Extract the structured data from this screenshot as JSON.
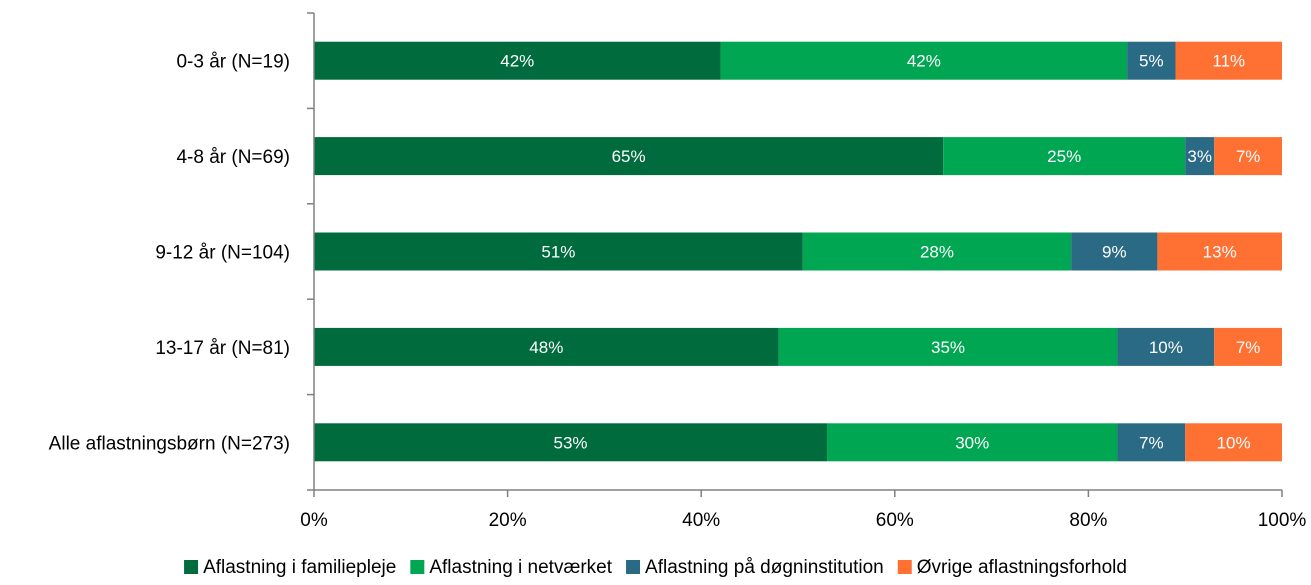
{
  "chart_data": {
    "type": "bar",
    "orientation": "horizontal",
    "stacked": true,
    "percent": true,
    "categories": [
      "0-3 år (N=19)",
      "4-8 år (N=69)",
      "9-12 år (N=104)",
      "13-17 år (N=81)",
      "Alle aflastningsbørn (N=273)"
    ],
    "series": [
      {
        "name": "Aflastning i familiepleje",
        "color": "#006b3c",
        "values": [
          42,
          65,
          51,
          48,
          53
        ],
        "labels": [
          "42%",
          "65%",
          "51%",
          "48%",
          "53%"
        ]
      },
      {
        "name": "Aflastning i netværket",
        "color": "#00a651",
        "values": [
          42,
          25,
          28,
          35,
          30
        ],
        "labels": [
          "42%",
          "25%",
          "28%",
          "35%",
          "30%"
        ]
      },
      {
        "name": "Aflastning på døgninstitution",
        "color": "#2b6a84",
        "values": [
          5,
          3,
          9,
          10,
          7
        ],
        "labels": [
          "5%",
          "3%",
          "9%",
          "10%",
          "7%"
        ]
      },
      {
        "name": "Øvrige aflastningsforhold",
        "color": "#ff7033",
        "values": [
          11,
          7,
          13,
          7,
          10
        ],
        "labels": [
          "11%",
          "7%",
          "13%",
          "7%",
          "10%"
        ]
      }
    ],
    "xlim": [
      0,
      100
    ],
    "xticks": [
      "0%",
      "20%",
      "40%",
      "60%",
      "80%",
      "100%"
    ],
    "grid": false,
    "legend_position": "bottom",
    "title": "",
    "xlabel": "",
    "ylabel": ""
  }
}
